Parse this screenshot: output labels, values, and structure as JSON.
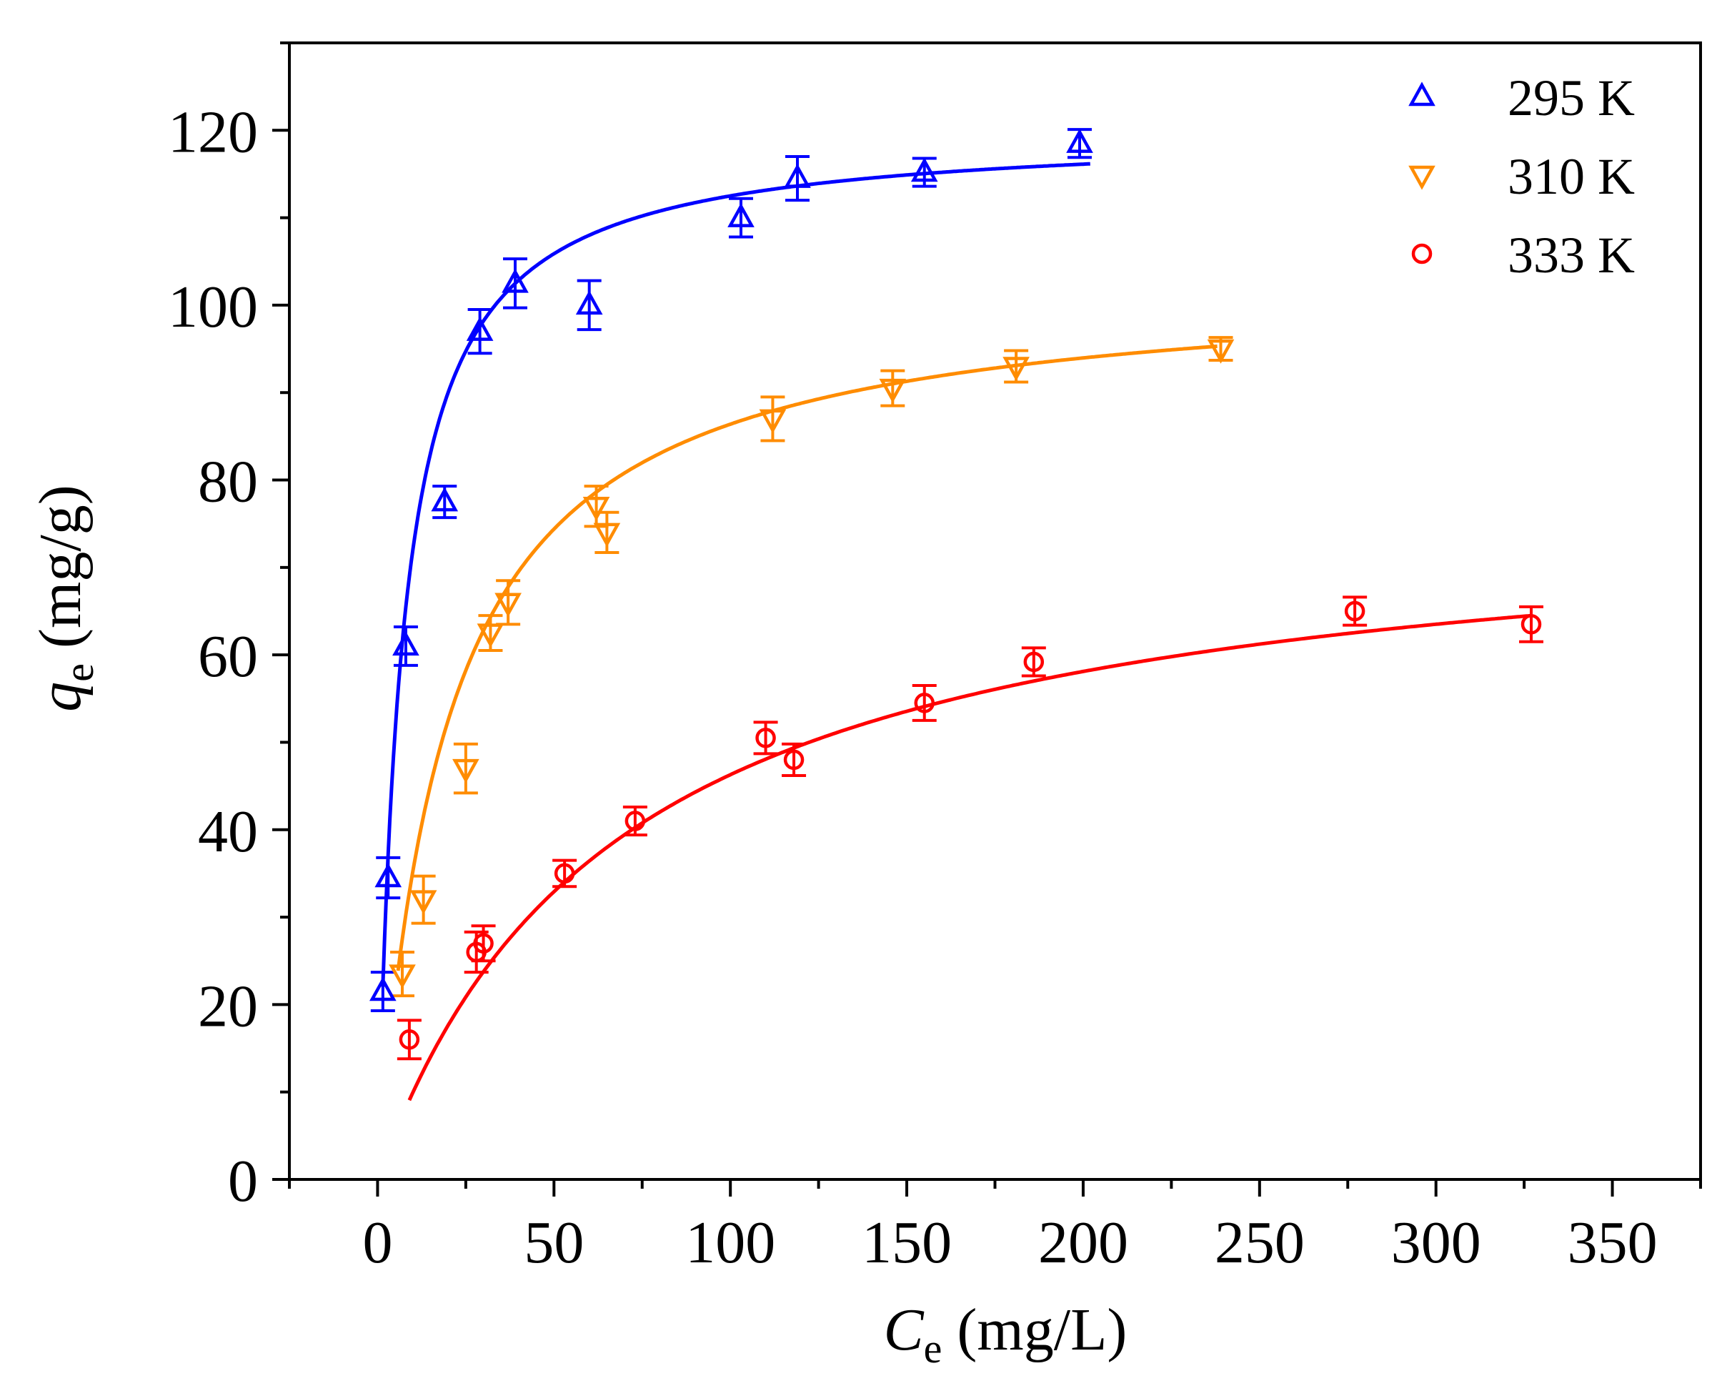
{
  "chart_data": {
    "type": "scatter",
    "title": "",
    "xlabel": {
      "symbol": "C",
      "subscript": "e",
      "unit": " (mg/L)"
    },
    "ylabel": {
      "symbol": "q",
      "subscript": "e",
      "unit": " (mg/g)"
    },
    "xlim": [
      -25,
      375
    ],
    "ylim": [
      0,
      130
    ],
    "xticks": [
      0,
      50,
      100,
      150,
      200,
      250,
      300,
      350
    ],
    "yticks": [
      0,
      20,
      40,
      60,
      80,
      100,
      120
    ],
    "grid": false,
    "legend_position": "top-right",
    "series": [
      {
        "name": "295 K",
        "color": "#0000ff",
        "marker": "triangle-up",
        "points": [
          {
            "x": 1.5,
            "y": 21.5,
            "err": 2.2
          },
          {
            "x": 3,
            "y": 34.5,
            "err": 2.3
          },
          {
            "x": 8,
            "y": 61,
            "err": 2.2
          },
          {
            "x": 19,
            "y": 77.5,
            "err": 1.8
          },
          {
            "x": 29,
            "y": 97,
            "err": 2.5
          },
          {
            "x": 39,
            "y": 102.5,
            "err": 2.8
          },
          {
            "x": 60,
            "y": 100,
            "err": 2.8
          },
          {
            "x": 103,
            "y": 110,
            "err": 2.2
          },
          {
            "x": 119,
            "y": 114.5,
            "err": 2.5
          },
          {
            "x": 155,
            "y": 115.2,
            "err": 1.6
          },
          {
            "x": 199,
            "y": 118.5,
            "err": 1.6
          }
        ],
        "fit": {
          "model": "Langmuir",
          "qm": 120,
          "KL": 0.15,
          "x_start": 1.5,
          "x_end": 202
        }
      },
      {
        "name": "310 K",
        "color": "#ff8c00",
        "marker": "triangle-down",
        "points": [
          {
            "x": 7,
            "y": 23.5,
            "err": 2.5
          },
          {
            "x": 13,
            "y": 32,
            "err": 2.7
          },
          {
            "x": 25,
            "y": 47,
            "err": 2.8
          },
          {
            "x": 32,
            "y": 62.5,
            "err": 2.0
          },
          {
            "x": 37,
            "y": 66,
            "err": 2.5
          },
          {
            "x": 62,
            "y": 77,
            "err": 2.3
          },
          {
            "x": 65,
            "y": 74,
            "err": 2.3
          },
          {
            "x": 112,
            "y": 87,
            "err": 2.5
          },
          {
            "x": 146,
            "y": 90.5,
            "err": 2.0
          },
          {
            "x": 181,
            "y": 93,
            "err": 1.8
          },
          {
            "x": 239,
            "y": 95,
            "err": 1.3
          }
        ],
        "fit": {
          "model": "Langmuir",
          "qm": 103,
          "KL": 0.052,
          "x_start": 5.8,
          "x_end": 238
        }
      },
      {
        "name": "333 K",
        "color": "#ff0000",
        "marker": "circle",
        "points": [
          {
            "x": 9,
            "y": 16,
            "err": 2.2
          },
          {
            "x": 28,
            "y": 26,
            "err": 2.3
          },
          {
            "x": 30,
            "y": 27,
            "err": 2.0
          },
          {
            "x": 53,
            "y": 35,
            "err": 1.5
          },
          {
            "x": 73,
            "y": 41,
            "err": 1.6
          },
          {
            "x": 110,
            "y": 50.5,
            "err": 1.8
          },
          {
            "x": 118,
            "y": 48,
            "err": 1.8
          },
          {
            "x": 155,
            "y": 54.5,
            "err": 2.0
          },
          {
            "x": 186,
            "y": 59.2,
            "err": 1.6
          },
          {
            "x": 277,
            "y": 65,
            "err": 1.6
          },
          {
            "x": 327,
            "y": 63.5,
            "err": 2.0
          }
        ],
        "fit": {
          "model": "Langmuir",
          "qm": 78,
          "KL": 0.0146,
          "x_start": 9,
          "x_end": 327
        }
      }
    ]
  }
}
